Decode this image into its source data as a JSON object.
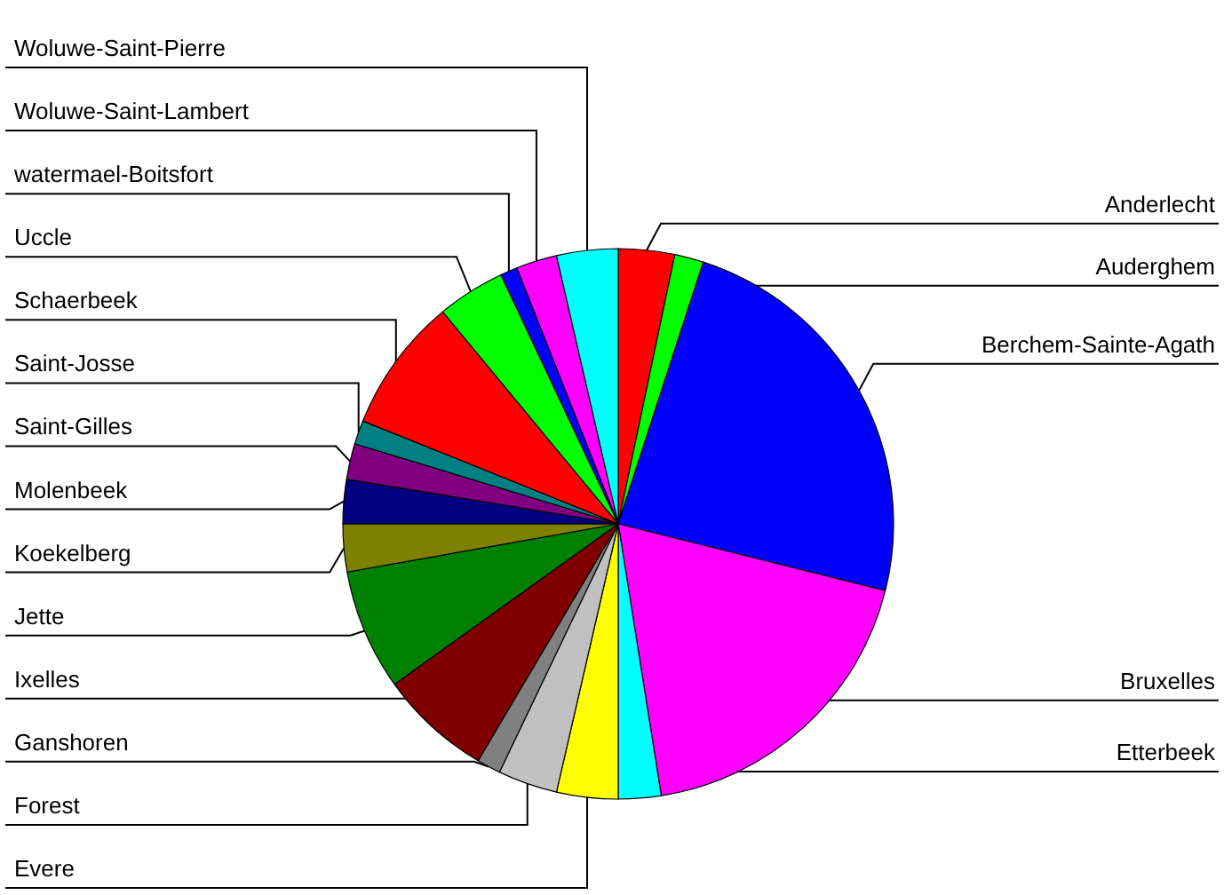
{
  "chart_data": {
    "type": "pie",
    "categories": [
      "Anderlecht",
      "Auderghem",
      "Berchem-Sainte-Agath",
      "Bruxelles",
      "Etterbeek",
      "Evere",
      "Forest",
      "Ganshoren",
      "Ixelles",
      "Jette",
      "Koekelberg",
      "Molenbeek",
      "Saint-Gilles",
      "Saint-Josse",
      "Schaerbeek",
      "Uccle",
      "watermael-Boitsfort",
      "Woluwe-Saint-Lambert",
      "Woluwe-Saint-Pierre"
    ],
    "values": [
      3.3,
      1.7,
      23.9,
      18.6,
      2.5,
      3.6,
      3.5,
      1.4,
      6.6,
      7.1,
      2.8,
      2.6,
      2.1,
      1.4,
      7.9,
      4.0,
      1.0,
      2.4,
      3.6
    ],
    "colors": [
      "#ff0000",
      "#00ff00",
      "#0000ff",
      "#ff00ff",
      "#00ffff",
      "#ffff00",
      "#c0c0c0",
      "#808080",
      "#800000",
      "#008000",
      "#808000",
      "#000080",
      "#800080",
      "#008080",
      "#ff0000",
      "#00ff00",
      "#0000ff",
      "#ff00ff",
      "#00ffff"
    ]
  }
}
